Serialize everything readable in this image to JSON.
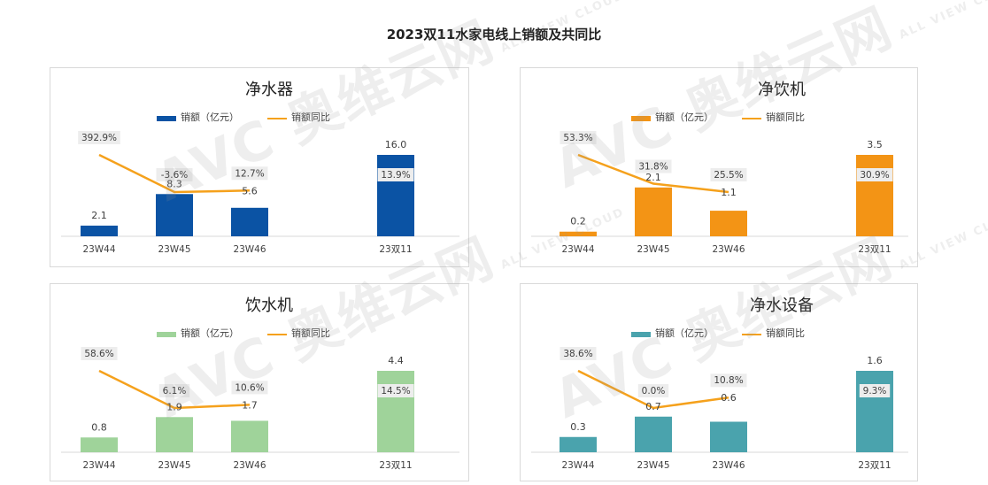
{
  "title": "2023双11水家电线上销额及共同比",
  "watermark": {
    "text": "AVC 奥维云网",
    "subtext": "ALL VIEW CLOUD"
  },
  "chart_data": [
    {
      "type": "bar",
      "title": "净水器",
      "categories": [
        "23W44",
        "23W45",
        "23W46",
        "23双11"
      ],
      "series": [
        {
          "name": "销额（亿元）",
          "type": "bar",
          "values": [
            2.1,
            8.3,
            5.6,
            16.0
          ],
          "labels": [
            "2.1",
            "8.3",
            "5.6",
            "16.0"
          ]
        },
        {
          "name": "销额同比",
          "type": "line",
          "values": [
            392.9,
            -3.6,
            12.7,
            13.9
          ],
          "labels": [
            "392.9%",
            "-3.6%",
            "12.7%",
            "13.9%"
          ]
        }
      ],
      "colors": {
        "bar": "#0b53a4",
        "line": "#f5a11c"
      },
      "legend": "top"
    },
    {
      "type": "bar",
      "title": "净饮机",
      "categories": [
        "23W44",
        "23W45",
        "23W46",
        "23双11"
      ],
      "series": [
        {
          "name": "销额（亿元）",
          "type": "bar",
          "values": [
            0.2,
            2.1,
            1.1,
            3.5
          ],
          "labels": [
            "0.2",
            "2.1",
            "1.1",
            "3.5"
          ]
        },
        {
          "name": "销额同比",
          "type": "line",
          "values": [
            53.3,
            31.8,
            25.5,
            30.9
          ],
          "labels": [
            "53.3%",
            "31.8%",
            "25.5%",
            "30.9%"
          ]
        }
      ],
      "colors": {
        "bar": "#f39415",
        "line": "#f5a11c"
      },
      "legend": "top"
    },
    {
      "type": "bar",
      "title": "饮水机",
      "categories": [
        "23W44",
        "23W45",
        "23W46",
        "23双11"
      ],
      "series": [
        {
          "name": "销额（亿元）",
          "type": "bar",
          "values": [
            0.8,
            1.9,
            1.7,
            4.4
          ],
          "labels": [
            "0.8",
            "1.9",
            "1.7",
            "4.4"
          ]
        },
        {
          "name": "销额同比",
          "type": "line",
          "values": [
            58.6,
            6.1,
            10.6,
            14.5
          ],
          "labels": [
            "58.6%",
            "6.1%",
            "10.6%",
            "14.5%"
          ]
        }
      ],
      "colors": {
        "bar": "#9fd39a",
        "line": "#f5a11c"
      },
      "legend": "top"
    },
    {
      "type": "bar",
      "title": "净水设备",
      "categories": [
        "23W44",
        "23W45",
        "23W46",
        "23双11"
      ],
      "series": [
        {
          "name": "销额（亿元）",
          "type": "bar",
          "values": [
            0.3,
            0.7,
            0.6,
            1.6
          ],
          "labels": [
            "0.3",
            "0.7",
            "0.6",
            "1.6"
          ]
        },
        {
          "name": "销额同比",
          "type": "line",
          "values": [
            38.6,
            0.0,
            10.8,
            9.3
          ],
          "labels": [
            "38.6%",
            "0.0%",
            "10.8%",
            "9.3%"
          ]
        }
      ],
      "colors": {
        "bar": "#4aa3ad",
        "line": "#f5a11c"
      },
      "legend": "top"
    }
  ]
}
